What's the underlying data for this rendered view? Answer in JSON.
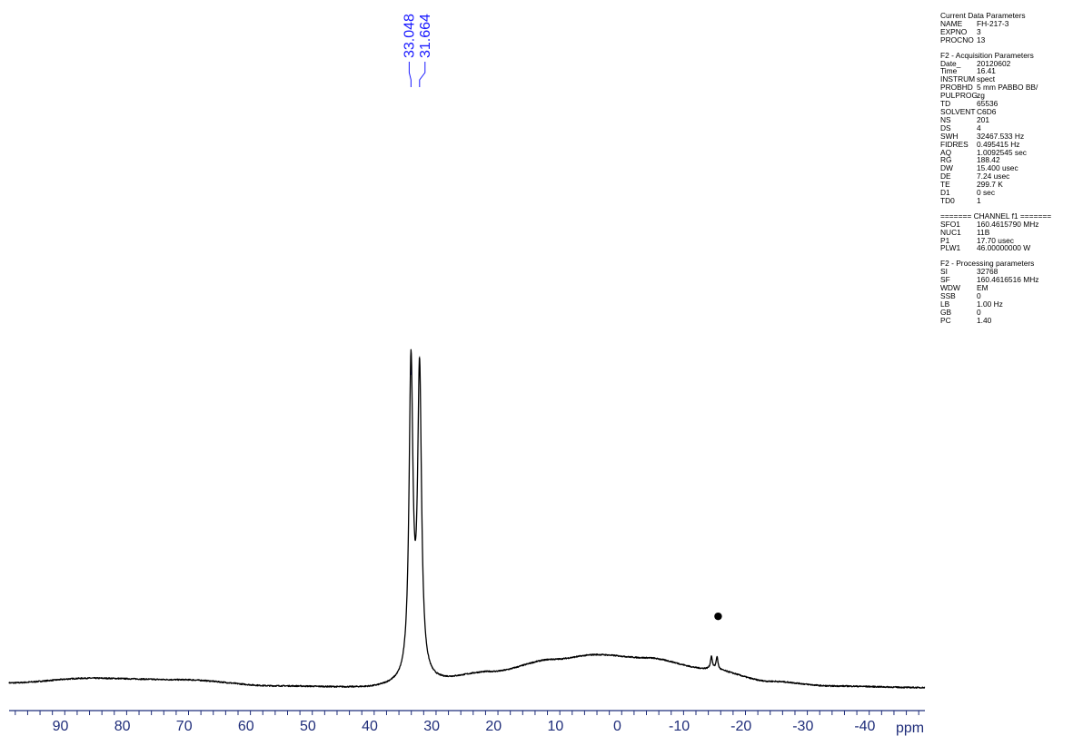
{
  "chart_data": {
    "type": "line",
    "xlabel": "ppm",
    "xlim": [
      98,
      -50
    ],
    "x_reversed": true,
    "x_ticks": [
      "90",
      "80",
      "70",
      "60",
      "50",
      "40",
      "30",
      "20",
      "10",
      "0",
      "-10",
      "-20",
      "-30",
      "-40"
    ],
    "peak_labels": [
      "33.048",
      "31.664"
    ],
    "baseline_features": [
      {
        "ppm": 98,
        "intensity": 0.045
      },
      {
        "ppm": 85,
        "intensity": 0.06
      },
      {
        "ppm": 70,
        "intensity": 0.055
      },
      {
        "ppm": 55,
        "intensity": 0.035
      },
      {
        "ppm": 40,
        "intensity": 0.03
      },
      {
        "ppm": 34,
        "intensity": 0.04
      },
      {
        "ppm": 30,
        "intensity": 0.05
      },
      {
        "ppm": 20,
        "intensity": 0.08
      },
      {
        "ppm": 10,
        "intensity": 0.12
      },
      {
        "ppm": 3,
        "intensity": 0.135
      },
      {
        "ppm": -5,
        "intensity": 0.125
      },
      {
        "ppm": -15,
        "intensity": 0.09
      },
      {
        "ppm": -25,
        "intensity": 0.05
      },
      {
        "ppm": -35,
        "intensity": 0.035
      },
      {
        "ppm": -50,
        "intensity": 0.03
      }
    ],
    "peaks": [
      {
        "ppm": 33.048,
        "intensity": 1.0
      },
      {
        "ppm": 31.664,
        "intensity": 0.97
      },
      {
        "ppm": -15.5,
        "intensity": 0.04
      },
      {
        "ppm": -16.4,
        "intensity": 0.04
      }
    ],
    "marker": {
      "symbol": "●",
      "ppm": -16.3
    }
  },
  "parameters": {
    "current": {
      "heading": "Current Data Parameters",
      "rows": [
        [
          "NAME",
          "FH-217-3"
        ],
        [
          "EXPNO",
          "3"
        ],
        [
          "PROCNO",
          "13"
        ]
      ]
    },
    "acquisition": {
      "heading": "F2 - Acquisition Parameters",
      "rows": [
        [
          "Date_",
          "20120602"
        ],
        [
          "Time",
          "16.41"
        ],
        [
          "INSTRUM",
          "spect"
        ],
        [
          "PROBHD",
          "5 mm PABBO BB/"
        ],
        [
          "PULPROG",
          "zg"
        ],
        [
          "TD",
          "65536"
        ],
        [
          "SOLVENT",
          "C6D6"
        ],
        [
          "NS",
          "201"
        ],
        [
          "DS",
          "4"
        ],
        [
          "SWH",
          "32467.533 Hz"
        ],
        [
          "FIDRES",
          "0.495415 Hz"
        ],
        [
          "AQ",
          "1.0092545 sec"
        ],
        [
          "RG",
          "188.42"
        ],
        [
          "DW",
          "15.400 usec"
        ],
        [
          "DE",
          "7.24 usec"
        ],
        [
          "TE",
          "299.7 K"
        ],
        [
          "D1",
          "0 sec"
        ],
        [
          "TD0",
          "1"
        ]
      ]
    },
    "channel": {
      "heading": "======= CHANNEL f1 =======",
      "rows": [
        [
          "SFO1",
          "160.4615790 MHz"
        ],
        [
          "NUC1",
          "11B"
        ],
        [
          "P1",
          "17.70 usec"
        ],
        [
          "PLW1",
          "46.00000000 W"
        ]
      ]
    },
    "processing": {
      "heading": "F2 - Processing parameters",
      "rows": [
        [
          "SI",
          "32768"
        ],
        [
          "SF",
          "160.4616516 MHz"
        ],
        [
          "WDW",
          "EM"
        ],
        [
          "SSB",
          "0"
        ],
        [
          "LB",
          "1.00 Hz"
        ],
        [
          "GB",
          "0"
        ],
        [
          "PC",
          "1.40"
        ]
      ]
    }
  },
  "colors": {
    "trace": "#000000",
    "labels": "#1a1aff",
    "axis": "#1f2d7a"
  }
}
